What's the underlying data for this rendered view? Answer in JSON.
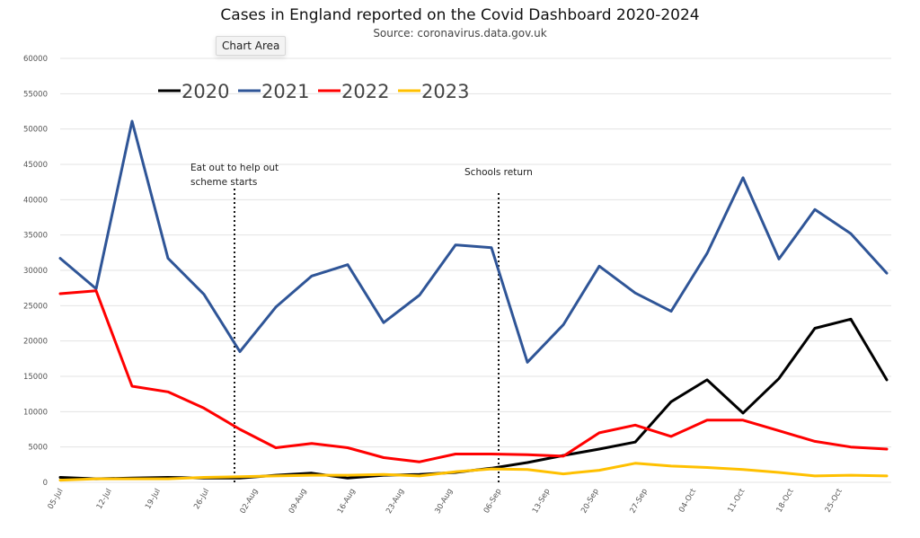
{
  "tooltip": {
    "label": "Chart Area"
  },
  "chart_data": {
    "type": "line",
    "title": "Cases in England reported on the Covid Dashboard 2020-2024",
    "subtitle": "Source: coronavirus.data.gov.uk",
    "xlabel": "",
    "ylabel": "",
    "ylim": [
      0,
      60000
    ],
    "yticks": [
      0,
      5000,
      10000,
      15000,
      20000,
      25000,
      30000,
      35000,
      40000,
      45000,
      50000,
      55000,
      60000
    ],
    "grid": true,
    "legend_position": "top",
    "x_tick_labels": [
      "05-Jul",
      "12-Jul",
      "19-Jul",
      "26-Jul",
      "02-Aug",
      "09-Aug",
      "16-Aug",
      "23-Aug",
      "30-Aug",
      "06-Sep",
      "13-Sep",
      "20-Sep",
      "27-Sep",
      "04-Oct",
      "11-Oct",
      "18-Oct",
      "25-Oct"
    ],
    "n_points": 24,
    "series": [
      {
        "name": "2020",
        "color": "#000000",
        "values": [
          700,
          500,
          600,
          700,
          600,
          600,
          1000,
          1300,
          600,
          1000,
          1100,
          1400,
          2000,
          2800,
          3800,
          4700,
          5700,
          11400,
          14500,
          9800,
          14700,
          21800,
          23100,
          14500
        ]
      },
      {
        "name": "2021",
        "color": "#2f5597",
        "values": [
          31700,
          27400,
          51100,
          31700,
          26600,
          18500,
          24800,
          29200,
          30800,
          22600,
          26500,
          33600,
          33200,
          17000,
          22300,
          30600,
          26800,
          24200,
          32400,
          43100,
          31600,
          38600,
          35200,
          29600
        ]
      },
      {
        "name": "2022",
        "color": "#ff0000",
        "values": [
          26700,
          27100,
          13600,
          12800,
          10500,
          7500,
          4900,
          5500,
          4900,
          3500,
          2900,
          4000,
          4000,
          3900,
          3700,
          7000,
          8100,
          6500,
          8800,
          8800,
          7300,
          5800,
          5000,
          4700
        ]
      },
      {
        "name": "2023",
        "color": "#ffc000",
        "values": [
          300,
          500,
          500,
          500,
          700,
          800,
          900,
          1000,
          1000,
          1100,
          900,
          1500,
          1900,
          1800,
          1200,
          1700,
          2700,
          2300,
          2100,
          1800,
          1400,
          900,
          1000,
          900
        ]
      }
    ],
    "annotations": [
      {
        "text_lines": [
          "Eat out to help out",
          "scheme starts"
        ],
        "at_point_index": 4.85,
        "type": "vertical-dotted-line"
      },
      {
        "text_lines": [
          "Schools return"
        ],
        "at_point_index": 12.2,
        "type": "vertical-dotted-line"
      }
    ]
  }
}
